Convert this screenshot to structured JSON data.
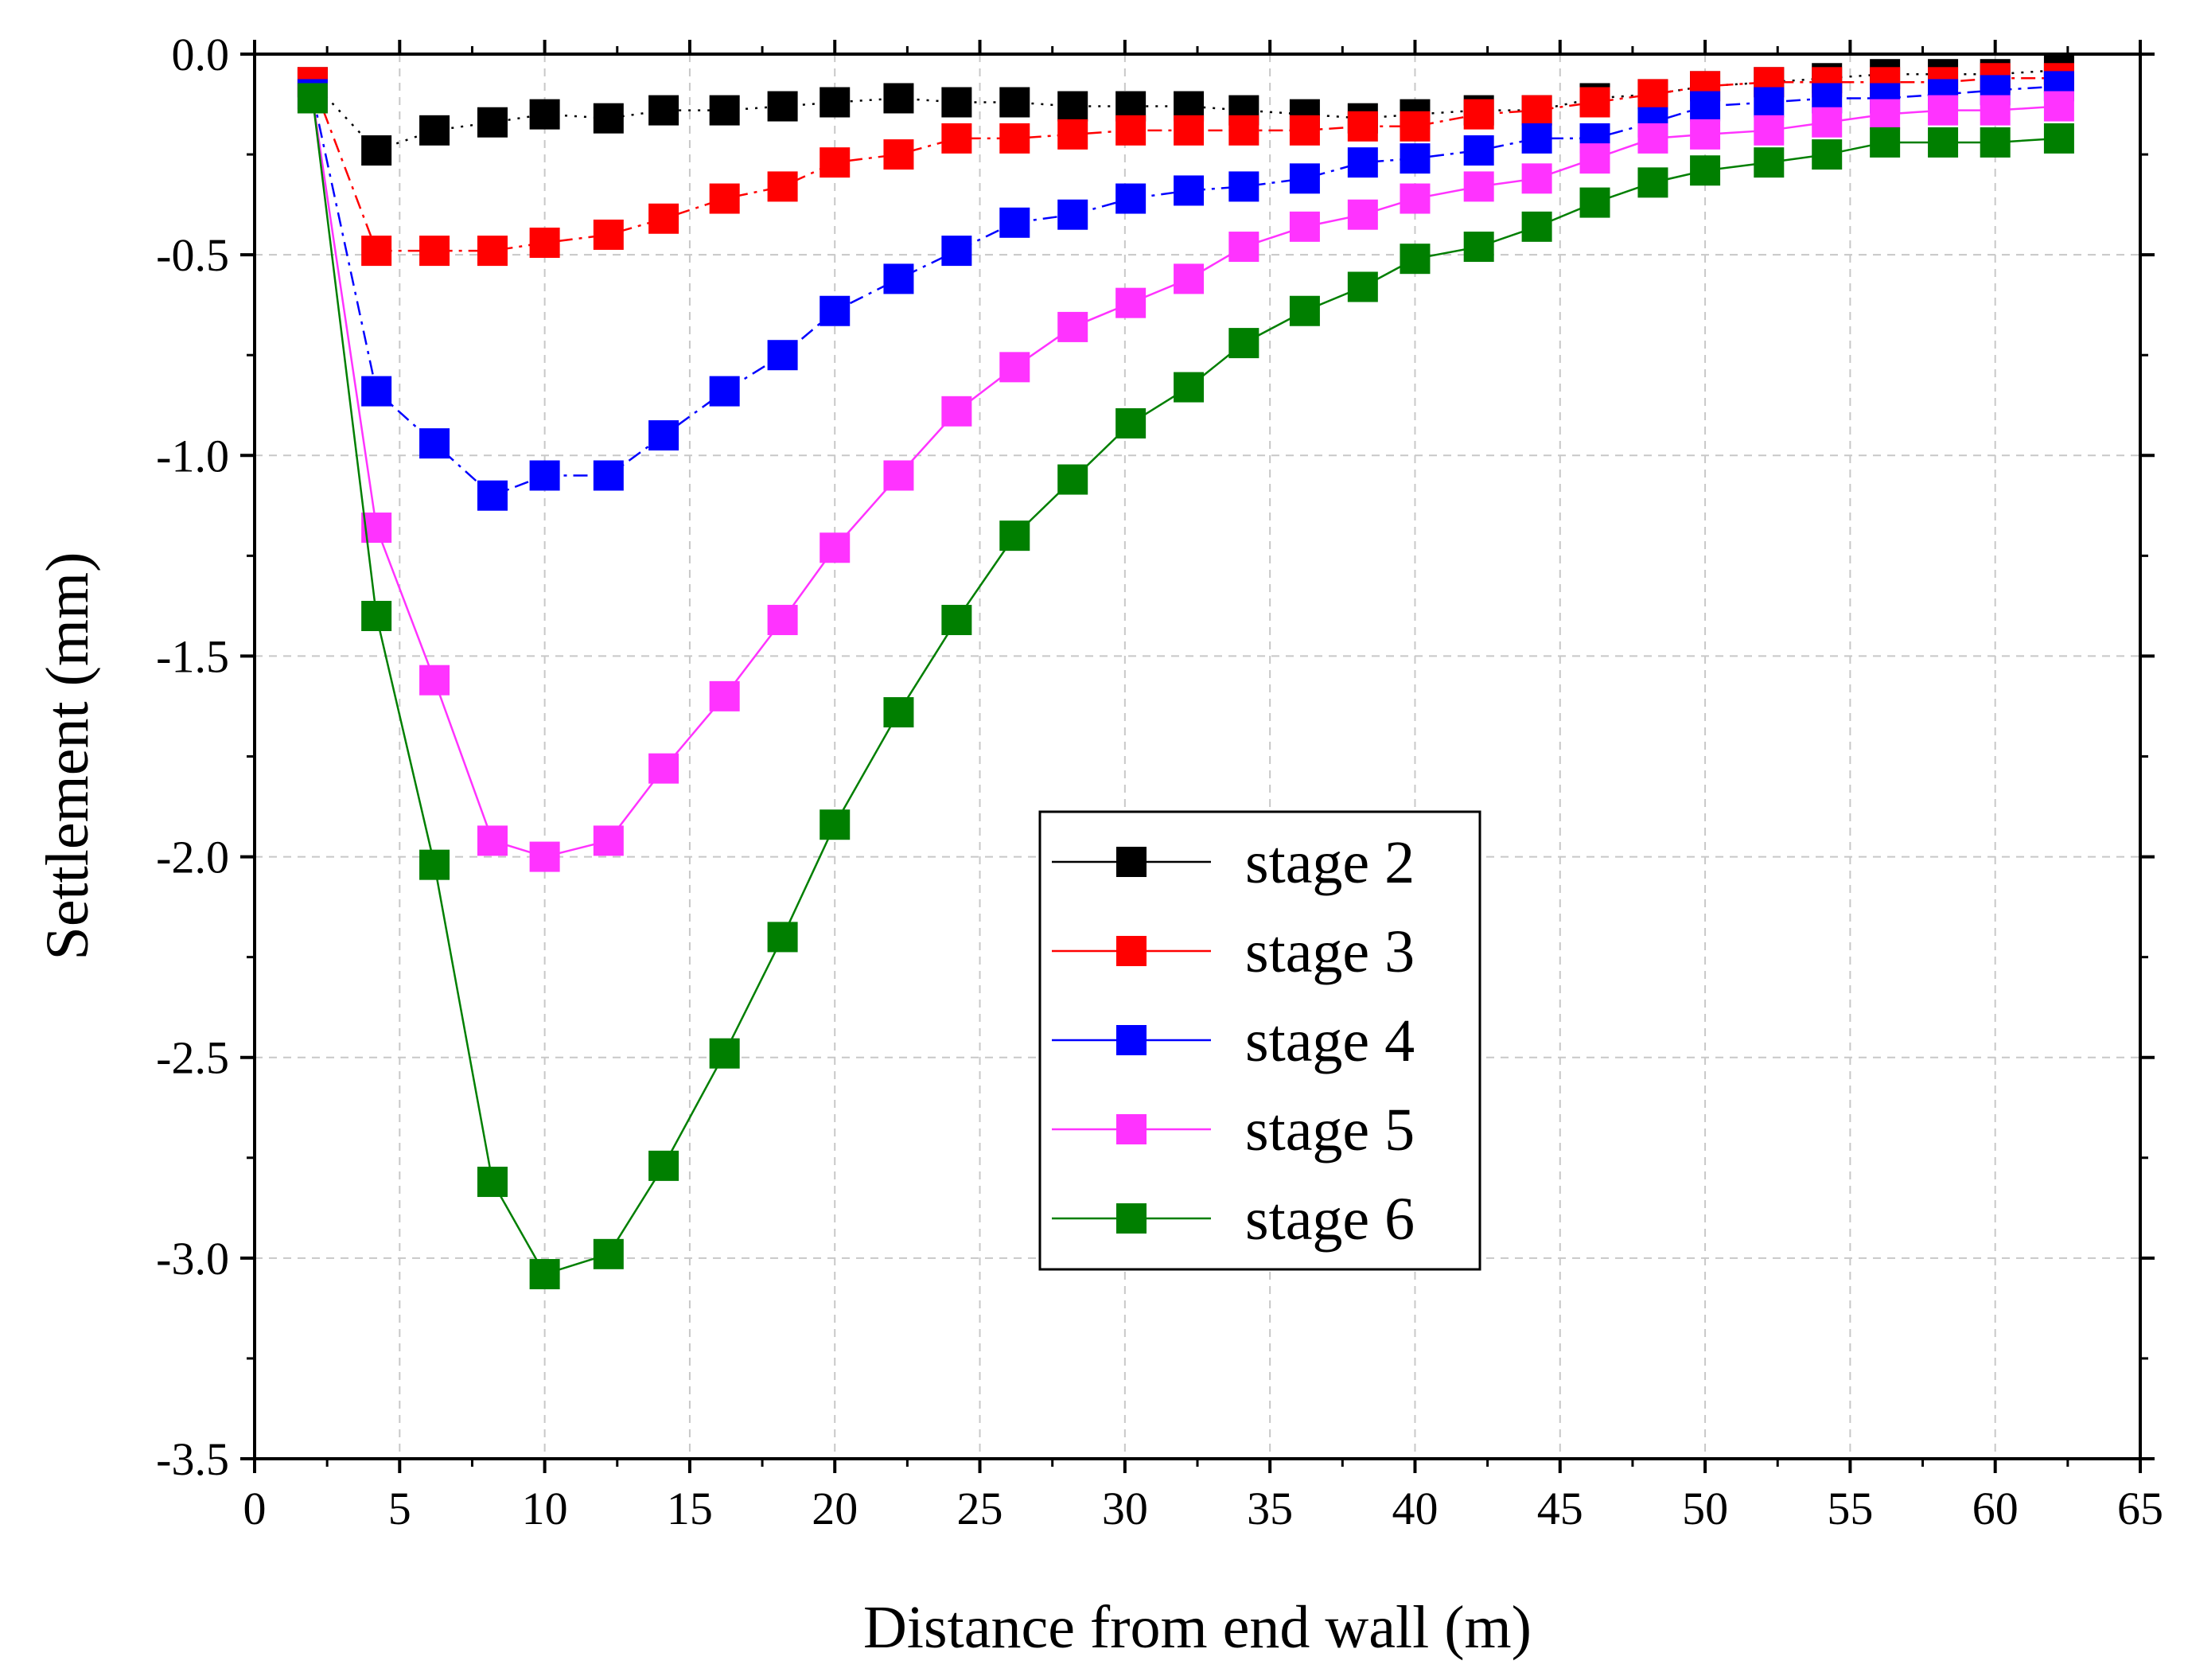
{
  "chart_data": {
    "type": "line",
    "title": "",
    "xlabel": "Distance from end wall (m)",
    "ylabel": "Settlement (mm)",
    "xlim": [
      0,
      65
    ],
    "ylim": [
      -3.5,
      0.0
    ],
    "xticks": [
      0,
      5,
      10,
      15,
      20,
      25,
      30,
      35,
      40,
      45,
      50,
      55,
      60,
      65
    ],
    "xtick_labels": [
      "0",
      "5",
      "10",
      "15",
      "20",
      "25",
      "30",
      "35",
      "40",
      "45",
      "50",
      "55",
      "60",
      "65"
    ],
    "yticks": [
      0.0,
      -0.5,
      -1.0,
      -1.5,
      -2.0,
      -2.5,
      -3.0,
      -3.5
    ],
    "ytick_labels": [
      "0.0",
      "-0.5",
      "-1.0",
      "-1.5",
      "-2.0",
      "-2.5",
      "-3.0",
      "-3.5"
    ],
    "grid": true,
    "legend_position": "center-right",
    "x": [
      2,
      4.2,
      6.2,
      8.2,
      10,
      12.2,
      14.1,
      16.2,
      18.2,
      20,
      22.2,
      24.2,
      26.2,
      28.2,
      30.2,
      32.2,
      34.1,
      36.2,
      38.2,
      40,
      42.2,
      44.2,
      46.2,
      48.2,
      50,
      52.2,
      54.2,
      56.2,
      58.2,
      60,
      62.2
    ],
    "series": [
      {
        "name": "stage 2",
        "color": "#000000",
        "dash": "dot",
        "values": [
          -0.07,
          -0.24,
          -0.19,
          -0.17,
          -0.15,
          -0.16,
          -0.14,
          -0.14,
          -0.13,
          -0.12,
          -0.11,
          -0.12,
          -0.12,
          -0.13,
          -0.13,
          -0.13,
          -0.14,
          -0.15,
          -0.16,
          -0.15,
          -0.14,
          -0.14,
          -0.11,
          -0.1,
          -0.08,
          -0.07,
          -0.06,
          -0.05,
          -0.05,
          -0.05,
          -0.04
        ]
      },
      {
        "name": "stage 3",
        "color": "#ff0000",
        "dash": "dashdot",
        "values": [
          -0.07,
          -0.49,
          -0.49,
          -0.49,
          -0.47,
          -0.45,
          -0.41,
          -0.36,
          -0.33,
          -0.27,
          -0.25,
          -0.21,
          -0.21,
          -0.2,
          -0.19,
          -0.19,
          -0.19,
          -0.19,
          -0.18,
          -0.18,
          -0.15,
          -0.14,
          -0.12,
          -0.1,
          -0.08,
          -0.07,
          -0.07,
          -0.07,
          -0.07,
          -0.06,
          -0.06
        ]
      },
      {
        "name": "stage 4",
        "color": "#0000ff",
        "dash": "dashdot",
        "values": [
          -0.1,
          -0.84,
          -0.97,
          -1.1,
          -1.05,
          -1.05,
          -0.95,
          -0.84,
          -0.75,
          -0.64,
          -0.56,
          -0.49,
          -0.42,
          -0.4,
          -0.36,
          -0.34,
          -0.33,
          -0.31,
          -0.27,
          -0.26,
          -0.24,
          -0.21,
          -0.21,
          -0.17,
          -0.13,
          -0.12,
          -0.11,
          -0.11,
          -0.1,
          -0.09,
          -0.08
        ]
      },
      {
        "name": "stage 5",
        "color": "#ff33ff",
        "dash": "solid",
        "values": [
          -0.11,
          -1.18,
          -1.56,
          -1.96,
          -2.0,
          -1.96,
          -1.78,
          -1.6,
          -1.41,
          -1.23,
          -1.05,
          -0.89,
          -0.78,
          -0.68,
          -0.62,
          -0.56,
          -0.48,
          -0.43,
          -0.4,
          -0.36,
          -0.33,
          -0.31,
          -0.26,
          -0.21,
          -0.2,
          -0.19,
          -0.17,
          -0.15,
          -0.14,
          -0.14,
          -0.13
        ]
      },
      {
        "name": "stage 6",
        "color": "#007f00",
        "dash": "solid",
        "values": [
          -0.11,
          -1.4,
          -2.02,
          -2.81,
          -3.04,
          -2.99,
          -2.77,
          -2.49,
          -2.2,
          -1.92,
          -1.64,
          -1.41,
          -1.2,
          -1.06,
          -0.92,
          -0.83,
          -0.72,
          -0.64,
          -0.58,
          -0.51,
          -0.48,
          -0.43,
          -0.37,
          -0.32,
          -0.29,
          -0.27,
          -0.25,
          -0.22,
          -0.22,
          -0.22,
          -0.21
        ]
      }
    ]
  }
}
